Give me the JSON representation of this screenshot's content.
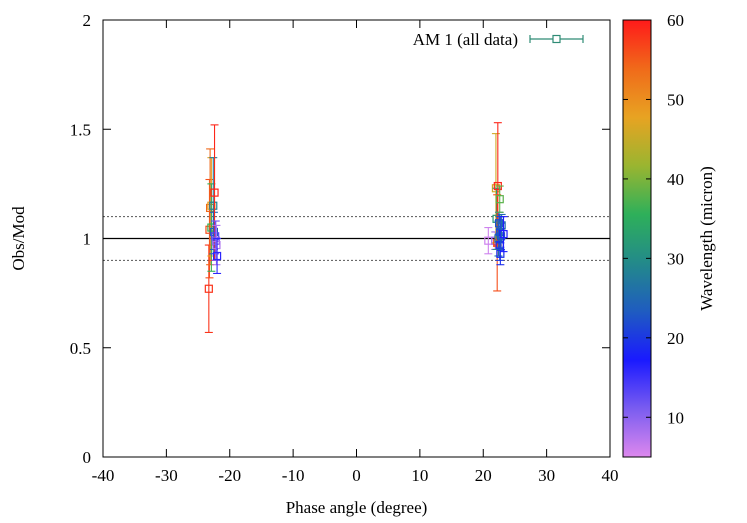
{
  "chart_data": {
    "type": "scatter",
    "xlabel": "Phase angle (degree)",
    "ylabel": "Obs/Mod",
    "xlim": [
      -40,
      40
    ],
    "ylim": [
      0,
      2
    ],
    "x_ticks": [
      "-40",
      "-30",
      "-20",
      "-10",
      "0",
      "10",
      "20",
      "30",
      "40"
    ],
    "y_ticks": [
      "0",
      "0.5",
      "1",
      "1.5",
      "2"
    ],
    "grid": false,
    "legend_position": "top-right",
    "series": [
      {
        "name": "AM 1 (all data)",
        "color": "#2e8b75",
        "marker": "open-square",
        "points": [
          {
            "x": -23.3,
            "y": 0.77,
            "ylo": 0.57,
            "yhi": 0.97,
            "wl": 58
          },
          {
            "x": -23.2,
            "y": 1.04,
            "ylo": 0.82,
            "yhi": 1.27,
            "wl": 56
          },
          {
            "x": -23.1,
            "y": 1.14,
            "ylo": 0.88,
            "yhi": 1.41,
            "wl": 54
          },
          {
            "x": -22.9,
            "y": 1.15,
            "ylo": 0.92,
            "yhi": 1.37,
            "wl": 48
          },
          {
            "x": -22.9,
            "y": 1.05,
            "ylo": 0.85,
            "yhi": 1.25,
            "wl": 36
          },
          {
            "x": -22.6,
            "y": 1.15,
            "ylo": 0.93,
            "yhi": 1.37,
            "wl": 28
          },
          {
            "x": -22.5,
            "y": 1.03,
            "ylo": 0.95,
            "yhi": 1.12,
            "wl": 24
          },
          {
            "x": -22.4,
            "y": 1.21,
            "ylo": 0.9,
            "yhi": 1.52,
            "wl": 59
          },
          {
            "x": -22.3,
            "y": 1.01,
            "ylo": 0.93,
            "yhi": 1.08,
            "wl": 14
          },
          {
            "x": -22.2,
            "y": 0.99,
            "ylo": 0.9,
            "yhi": 1.08,
            "wl": 11
          },
          {
            "x": -22.1,
            "y": 0.97,
            "ylo": 0.88,
            "yhi": 1.06,
            "wl": 8
          },
          {
            "x": -22.0,
            "y": 0.92,
            "ylo": 0.84,
            "yhi": 1.0,
            "wl": 16
          },
          {
            "x": 20.8,
            "y": 0.99,
            "ylo": 0.93,
            "yhi": 1.05,
            "wl": 6
          },
          {
            "x": 21.9,
            "y": 0.99,
            "ylo": 0.95,
            "yhi": 1.03,
            "wl": 9
          },
          {
            "x": 22.0,
            "y": 1.23,
            "ylo": 0.98,
            "yhi": 1.48,
            "wl": 46
          },
          {
            "x": 22.1,
            "y": 1.09,
            "ylo": 0.95,
            "yhi": 1.23,
            "wl": 32
          },
          {
            "x": 22.2,
            "y": 0.98,
            "ylo": 0.76,
            "yhi": 1.2,
            "wl": 56
          },
          {
            "x": 22.3,
            "y": 1.24,
            "ylo": 0.97,
            "yhi": 1.53,
            "wl": 59
          },
          {
            "x": 22.4,
            "y": 1.0,
            "ylo": 0.92,
            "yhi": 1.08,
            "wl": 26
          },
          {
            "x": 22.5,
            "y": 1.07,
            "ylo": 1.02,
            "yhi": 1.12,
            "wl": 22
          },
          {
            "x": 22.6,
            "y": 1.18,
            "ylo": 1.12,
            "yhi": 1.24,
            "wl": 38
          },
          {
            "x": 22.6,
            "y": 0.97,
            "ylo": 0.9,
            "yhi": 1.04,
            "wl": 20
          },
          {
            "x": 22.7,
            "y": 0.93,
            "ylo": 0.88,
            "yhi": 0.98,
            "wl": 19
          },
          {
            "x": 22.7,
            "y": 1.03,
            "ylo": 0.96,
            "yhi": 1.1,
            "wl": 21
          },
          {
            "x": 22.8,
            "y": 1.01,
            "ylo": 0.95,
            "yhi": 1.07,
            "wl": 23
          },
          {
            "x": 22.9,
            "y": 1.06,
            "ylo": 1.0,
            "yhi": 1.11,
            "wl": 25
          },
          {
            "x": 23.2,
            "y": 1.02,
            "ylo": 0.94,
            "yhi": 1.1,
            "wl": 17
          }
        ]
      }
    ],
    "reference_lines": [
      {
        "y": 1.0,
        "style": "solid"
      },
      {
        "y": 1.1,
        "style": "dotted"
      },
      {
        "y": 0.9,
        "style": "dotted"
      }
    ],
    "colorbar": {
      "label": "Wavelength (micron)",
      "range": [
        5,
        60
      ],
      "ticks": [
        "10",
        "20",
        "30",
        "40",
        "50",
        "60"
      ],
      "stops": [
        "#dd88ee",
        "#7a5cf0",
        "#1a1aff",
        "#1f5cc0",
        "#238a8a",
        "#2eb05a",
        "#9ab530",
        "#e8a322",
        "#f06a1a",
        "#ff1a1a"
      ]
    }
  }
}
